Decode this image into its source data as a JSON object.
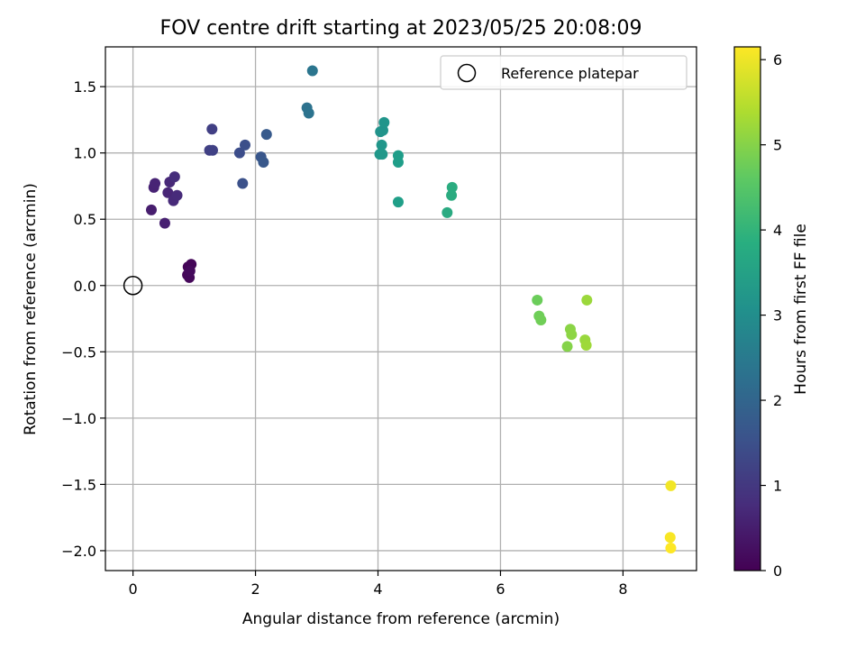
{
  "chart_data": {
    "type": "scatter",
    "title": "FOV centre drift starting at 2023/05/25 20:08:09",
    "xlabel": "Angular distance from reference (arcmin)",
    "ylabel": "Rotation from reference (arcmin)",
    "xlim": [
      -0.45,
      9.2
    ],
    "ylim": [
      -2.15,
      1.8
    ],
    "xticks": [
      0,
      2,
      4,
      6,
      8
    ],
    "yticks": [
      -2.0,
      -1.5,
      -1.0,
      -0.5,
      0.0,
      0.5,
      1.0,
      1.5
    ],
    "xtick_labels": [
      "0",
      "2",
      "4",
      "6",
      "8"
    ],
    "ytick_labels": [
      "−2.0",
      "−1.5",
      "−1.0",
      "−0.5",
      "0.0",
      "0.5",
      "1.0",
      "1.5"
    ],
    "grid": true,
    "legend": {
      "label": "Reference platepar",
      "placement": "upper right"
    },
    "reference_point": {
      "x": 0.0,
      "y": 0.0
    },
    "colorbar": {
      "label": "Hours from first FF file",
      "range": [
        0,
        6.15
      ],
      "ticks": [
        0,
        1,
        2,
        3,
        4,
        5,
        6
      ],
      "tick_labels": [
        "0",
        "1",
        "2",
        "3",
        "4",
        "5",
        "6"
      ],
      "colormap": "viridis"
    },
    "points": [
      {
        "x": 0.9,
        "y": 0.14,
        "hours": 0.05
      },
      {
        "x": 0.95,
        "y": 0.16,
        "hours": 0.08
      },
      {
        "x": 0.89,
        "y": 0.08,
        "hours": 0.1
      },
      {
        "x": 0.92,
        "y": 0.06,
        "hours": 0.12
      },
      {
        "x": 0.93,
        "y": 0.11,
        "hours": 0.15
      },
      {
        "x": 0.3,
        "y": 0.57,
        "hours": 0.5
      },
      {
        "x": 0.52,
        "y": 0.47,
        "hours": 0.55
      },
      {
        "x": 0.34,
        "y": 0.74,
        "hours": 0.6
      },
      {
        "x": 0.36,
        "y": 0.77,
        "hours": 0.62
      },
      {
        "x": 0.57,
        "y": 0.7,
        "hours": 0.65
      },
      {
        "x": 0.6,
        "y": 0.78,
        "hours": 0.7
      },
      {
        "x": 0.66,
        "y": 0.64,
        "hours": 0.72
      },
      {
        "x": 0.72,
        "y": 0.68,
        "hours": 0.75
      },
      {
        "x": 0.68,
        "y": 0.82,
        "hours": 0.8
      },
      {
        "x": 1.29,
        "y": 1.18,
        "hours": 1.15
      },
      {
        "x": 1.25,
        "y": 1.02,
        "hours": 1.18
      },
      {
        "x": 1.3,
        "y": 1.02,
        "hours": 1.2
      },
      {
        "x": 1.74,
        "y": 1.0,
        "hours": 1.45
      },
      {
        "x": 1.83,
        "y": 1.06,
        "hours": 1.5
      },
      {
        "x": 1.79,
        "y": 0.77,
        "hours": 1.55
      },
      {
        "x": 2.09,
        "y": 0.97,
        "hours": 1.65
      },
      {
        "x": 2.13,
        "y": 0.93,
        "hours": 1.7
      },
      {
        "x": 2.18,
        "y": 1.14,
        "hours": 1.75
      },
      {
        "x": 2.84,
        "y": 1.34,
        "hours": 2.3
      },
      {
        "x": 2.87,
        "y": 1.3,
        "hours": 2.35
      },
      {
        "x": 2.93,
        "y": 1.62,
        "hours": 2.4
      },
      {
        "x": 4.04,
        "y": 1.16,
        "hours": 3.15
      },
      {
        "x": 4.08,
        "y": 1.17,
        "hours": 3.18
      },
      {
        "x": 4.1,
        "y": 1.23,
        "hours": 3.2
      },
      {
        "x": 4.06,
        "y": 1.06,
        "hours": 3.22
      },
      {
        "x": 4.03,
        "y": 0.99,
        "hours": 3.25
      },
      {
        "x": 4.07,
        "y": 0.99,
        "hours": 3.27
      },
      {
        "x": 4.33,
        "y": 0.98,
        "hours": 3.4
      },
      {
        "x": 4.33,
        "y": 0.93,
        "hours": 3.42
      },
      {
        "x": 4.33,
        "y": 0.63,
        "hours": 3.45
      },
      {
        "x": 5.13,
        "y": 0.55,
        "hours": 3.75
      },
      {
        "x": 5.2,
        "y": 0.68,
        "hours": 3.78
      },
      {
        "x": 5.21,
        "y": 0.74,
        "hours": 3.8
      },
      {
        "x": 6.6,
        "y": -0.11,
        "hours": 4.75
      },
      {
        "x": 6.63,
        "y": -0.23,
        "hours": 4.78
      },
      {
        "x": 6.66,
        "y": -0.26,
        "hours": 4.8
      },
      {
        "x": 7.09,
        "y": -0.46,
        "hours": 5.0
      },
      {
        "x": 7.14,
        "y": -0.33,
        "hours": 5.05
      },
      {
        "x": 7.16,
        "y": -0.37,
        "hours": 5.08
      },
      {
        "x": 7.38,
        "y": -0.41,
        "hours": 5.2
      },
      {
        "x": 7.41,
        "y": -0.11,
        "hours": 5.22
      },
      {
        "x": 7.4,
        "y": -0.45,
        "hours": 5.25
      },
      {
        "x": 8.78,
        "y": -1.51,
        "hours": 6.05
      },
      {
        "x": 8.77,
        "y": -1.9,
        "hours": 6.1
      },
      {
        "x": 8.78,
        "y": -1.98,
        "hours": 6.15
      }
    ]
  }
}
